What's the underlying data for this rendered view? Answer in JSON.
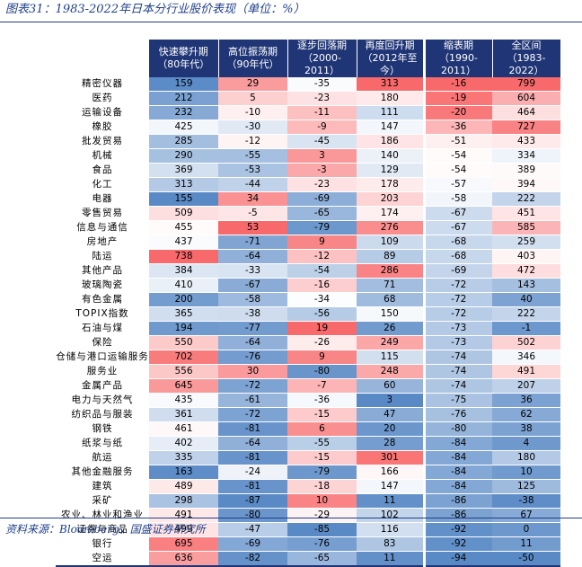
{
  "title": "图表31：1983-2022年日本分行业股价表现（单位：%）",
  "source": "资料来源：Bloomberg，国盛证券研究所",
  "columns": [
    {
      "line1": "快速攀升期",
      "line2": "（80年代）"
    },
    {
      "line1": "高位振荡期",
      "line2": "（90年代）"
    },
    {
      "line1": "逐步回落期",
      "line2": "（2000-2011）"
    },
    {
      "line1": "再度回升期",
      "line2": "（2012年至今）"
    },
    {
      "line1": "缩表期",
      "line2": "（1990-2011）"
    },
    {
      "line1": "全区间",
      "line2": "（1983-2022）"
    }
  ],
  "rows": [
    {
      "name": "精密仪器",
      "values": [
        159,
        29,
        -35,
        313,
        -16,
        799
      ]
    },
    {
      "name": "医药",
      "values": [
        212,
        5,
        -23,
        180,
        -19,
        604
      ]
    },
    {
      "name": "运输设备",
      "values": [
        232,
        -10,
        -11,
        111,
        -20,
        464
      ]
    },
    {
      "name": "橡胶",
      "values": [
        425,
        -30,
        -9,
        147,
        -36,
        727
      ]
    },
    {
      "name": "批发贸易",
      "values": [
        285,
        -12,
        -45,
        186,
        -51,
        433
      ]
    },
    {
      "name": "机械",
      "values": [
        290,
        -55,
        3,
        140,
        -54,
        334
      ]
    },
    {
      "name": "食品",
      "values": [
        369,
        -53,
        -3,
        129,
        -54,
        389
      ]
    },
    {
      "name": "化工",
      "values": [
        313,
        -44,
        -23,
        178,
        -57,
        394
      ]
    },
    {
      "name": "电器",
      "values": [
        155,
        34,
        -69,
        203,
        -58,
        222
      ]
    },
    {
      "name": "零售贸易",
      "values": [
        509,
        -5,
        -65,
        174,
        -67,
        451
      ]
    },
    {
      "name": "信息与通信",
      "values": [
        455,
        53,
        -79,
        276,
        -67,
        585
      ]
    },
    {
      "name": "房地产",
      "values": [
        437,
        -71,
        9,
        109,
        -68,
        259
      ]
    },
    {
      "name": "陆运",
      "values": [
        738,
        -64,
        -12,
        89,
        -68,
        403
      ]
    },
    {
      "name": "其他产品",
      "values": [
        384,
        -33,
        -54,
        286,
        -69,
        472
      ]
    },
    {
      "name": "玻璃陶瓷",
      "values": [
        410,
        -67,
        -16,
        71,
        -72,
        143
      ]
    },
    {
      "name": "有色金属",
      "values": [
        200,
        -58,
        -34,
        68,
        -72,
        40
      ]
    },
    {
      "name": "TOPIX指数",
      "values": [
        365,
        -38,
        -56,
        150,
        -72,
        222
      ]
    },
    {
      "name": "石油与煤",
      "values": [
        194,
        -77,
        19,
        26,
        -73,
        -1
      ]
    },
    {
      "name": "保险",
      "values": [
        550,
        -64,
        -26,
        249,
        -73,
        502
      ]
    },
    {
      "name": "仓储与港口运输服务",
      "values": [
        702,
        -76,
        9,
        115,
        -74,
        346
      ]
    },
    {
      "name": "服务业",
      "values": [
        556,
        30,
        -80,
        248,
        -74,
        491
      ]
    },
    {
      "name": "金属产品",
      "values": [
        645,
        -72,
        -7,
        60,
        -74,
        207
      ]
    },
    {
      "name": "电力与天然气",
      "values": [
        435,
        -61,
        -36,
        3,
        -75,
        36
      ]
    },
    {
      "name": "纺织品与服装",
      "values": [
        361,
        -72,
        -15,
        47,
        -76,
        62
      ]
    },
    {
      "name": "钢铁",
      "values": [
        461,
        -81,
        6,
        20,
        -80,
        38
      ]
    },
    {
      "name": "纸浆与纸",
      "values": [
        402,
        -64,
        -55,
        28,
        -84,
        4
      ]
    },
    {
      "name": "航运",
      "values": [
        335,
        -81,
        -15,
        301,
        -84,
        180
      ]
    },
    {
      "name": "其他金融服务",
      "values": [
        163,
        -24,
        -79,
        166,
        -84,
        10
      ]
    },
    {
      "name": "建筑",
      "values": [
        489,
        -81,
        -18,
        147,
        -84,
        125
      ]
    },
    {
      "name": "采矿",
      "values": [
        298,
        -87,
        10,
        11,
        -86,
        -38
      ]
    },
    {
      "name": "农业、林业和渔业",
      "values": [
        491,
        -80,
        -29,
        102,
        -86,
        67
      ]
    },
    {
      "name": "证券与商品",
      "values": [
        499,
        -47,
        -85,
        116,
        -92,
        0
      ]
    },
    {
      "name": "银行",
      "values": [
        695,
        -69,
        -76,
        83,
        -92,
        11
      ]
    },
    {
      "name": "空运",
      "values": [
        636,
        -82,
        -65,
        11,
        -94,
        -50
      ]
    }
  ]
}
